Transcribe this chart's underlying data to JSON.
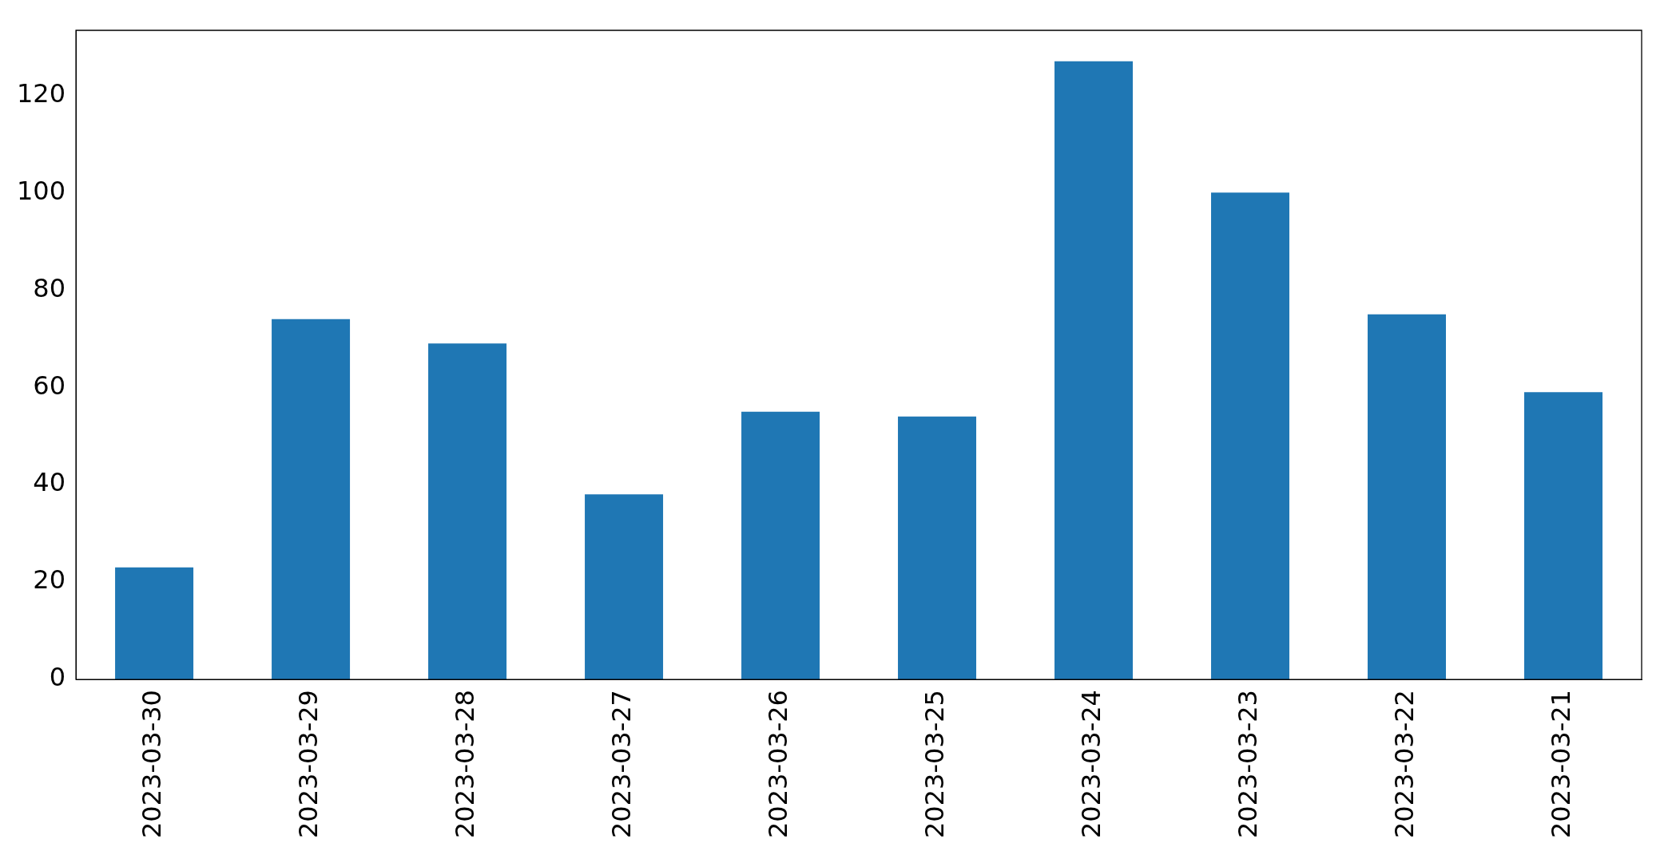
{
  "chart_data": {
    "type": "bar",
    "categories": [
      "2023-03-30",
      "2023-03-29",
      "2023-03-28",
      "2023-03-27",
      "2023-03-26",
      "2023-03-25",
      "2023-03-24",
      "2023-03-23",
      "2023-03-22",
      "2023-03-21"
    ],
    "values": [
      23,
      74,
      69,
      38,
      55,
      54,
      127,
      100,
      75,
      59
    ],
    "color": "#1f77b4",
    "ylim": [
      0,
      133.35
    ],
    "yticks": [
      0,
      20,
      40,
      60,
      80,
      100,
      120
    ],
    "grid": false,
    "legend": false
  }
}
